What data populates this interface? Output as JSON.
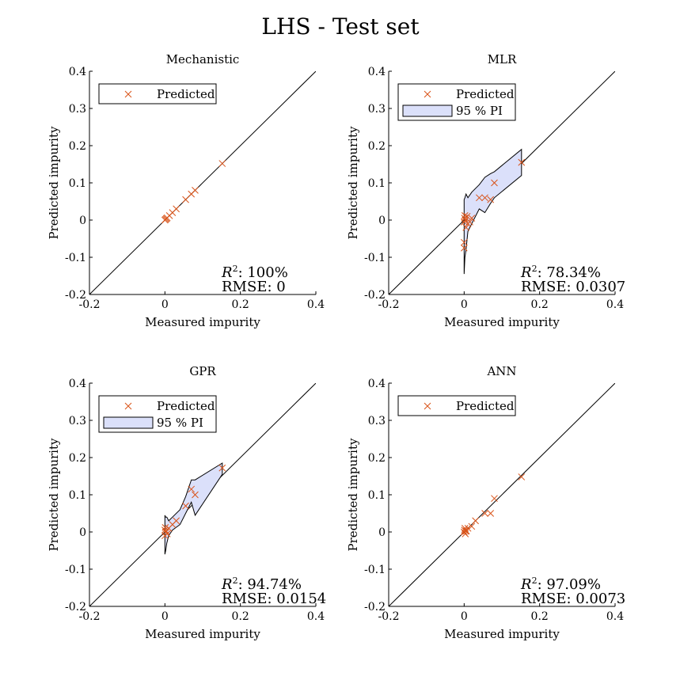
{
  "figure": {
    "title": "LHS - Test set"
  },
  "chart_data": [
    {
      "type": "scatter",
      "title": "Mechanistic",
      "xlabel": "Measured impurity",
      "ylabel": "Predicted impurity",
      "xlim": [
        -0.2,
        0.4
      ],
      "ylim": [
        -0.2,
        0.4
      ],
      "xticks": [
        "-0.2",
        "0",
        "0.2",
        "0.4"
      ],
      "yticks": [
        "-0.2",
        "-0.1",
        "0",
        "0.1",
        "0.2",
        "0.3",
        "0.4"
      ],
      "grid": false,
      "legend": {
        "placement": "top-left",
        "entries": [
          "Predicted"
        ]
      },
      "reference_line": "y = x",
      "series": [
        {
          "name": "Predicted",
          "marker": "x",
          "color": "#d95319",
          "x": [
            0,
            0.002,
            0.004,
            0.006,
            0.012,
            0.02,
            0.03,
            0.055,
            0.07,
            0.08,
            0.152
          ],
          "y": [
            0,
            0.002,
            0.004,
            0.006,
            0.012,
            0.02,
            0.03,
            0.055,
            0.07,
            0.08,
            0.152
          ]
        }
      ],
      "stats": {
        "r2_label": "R",
        "r2_sup": "2",
        "r2_value": ": 100%",
        "rmse": "RMSE: 0"
      }
    },
    {
      "type": "scatter",
      "title": "MLR",
      "xlabel": "Measured impurity",
      "ylabel": "Predicted impurity",
      "xlim": [
        -0.2,
        0.4
      ],
      "ylim": [
        -0.2,
        0.4
      ],
      "xticks": [
        "-0.2",
        "0",
        "0.2",
        "0.4"
      ],
      "yticks": [
        "-0.2",
        "-0.1",
        "0",
        "0.1",
        "0.2",
        "0.3",
        "0.4"
      ],
      "grid": false,
      "legend": {
        "placement": "top-left",
        "entries": [
          "Predicted",
          "95 % PI"
        ]
      },
      "reference_line": "y = x",
      "series": [
        {
          "name": "Predicted",
          "marker": "x",
          "color": "#d95319",
          "x": [
            0,
            0,
            0,
            0.001,
            0.002,
            0.003,
            0.005,
            0.008,
            0.01,
            0.015,
            0.02,
            0.04,
            0.055,
            0.07,
            0.08,
            0.152
          ],
          "y": [
            -0.075,
            -0.06,
            -0.005,
            0.005,
            0.012,
            0,
            -0.02,
            0.01,
            -0.01,
            -0.005,
            0.005,
            0.06,
            0.06,
            0.055,
            0.1,
            0.155
          ]
        }
      ],
      "pi_band": {
        "name": "95 % PI",
        "fill": "#dbe0fa",
        "x": [
          0,
          0.002,
          0.005,
          0.01,
          0.02,
          0.04,
          0.055,
          0.07,
          0.08,
          0.152
        ],
        "upper": [
          0.055,
          0.06,
          0.07,
          0.06,
          0.075,
          0.095,
          0.115,
          0.125,
          0.13,
          0.19
        ],
        "lower": [
          -0.145,
          -0.1,
          -0.08,
          -0.03,
          -0.01,
          0.03,
          0.02,
          0.045,
          0.06,
          0.12
        ]
      }
    },
    {
      "type": "scatter",
      "title": "GPR",
      "xlabel": "Measured impurity",
      "ylabel": "Predicted impurity",
      "xlim": [
        -0.2,
        0.4
      ],
      "ylim": [
        -0.2,
        0.4
      ],
      "xticks": [
        "-0.2",
        "0",
        "0.2",
        "0.4"
      ],
      "yticks": [
        "-0.2",
        "-0.1",
        "0",
        "0.1",
        "0.2",
        "0.3",
        "0.4"
      ],
      "grid": false,
      "legend": {
        "placement": "top-left",
        "entries": [
          "Predicted",
          "95 % PI"
        ]
      },
      "reference_line": "y = x",
      "series": [
        {
          "name": "Predicted",
          "marker": "x",
          "color": "#d95319",
          "x": [
            0,
            0,
            0.001,
            0.002,
            0.004,
            0.006,
            0.01,
            0.02,
            0.03,
            0.055,
            0.07,
            0.08,
            0.152
          ],
          "y": [
            -0.01,
            0.005,
            0.012,
            0,
            0.002,
            -0.005,
            0.01,
            0.02,
            0.03,
            0.07,
            0.115,
            0.1,
            0.172
          ]
        }
      ],
      "pi_band": {
        "name": "95 % PI",
        "fill": "#dbe0fa",
        "x": [
          0,
          0.002,
          0.005,
          0.01,
          0.02,
          0.04,
          0.055,
          0.07,
          0.08,
          0.152
        ],
        "upper": [
          0.045,
          0.04,
          0.04,
          0.03,
          0.04,
          0.06,
          0.095,
          0.14,
          0.14,
          0.185
        ],
        "lower": [
          -0.06,
          -0.05,
          -0.03,
          -0.01,
          0.005,
          0.02,
          0.05,
          0.08,
          0.045,
          0.155
        ]
      }
    },
    {
      "type": "scatter",
      "title": "ANN",
      "xlabel": "Measured impurity",
      "ylabel": "Predicted impurity",
      "xlim": [
        -0.2,
        0.4
      ],
      "ylim": [
        -0.2,
        0.4
      ],
      "xticks": [
        "-0.2",
        "0",
        "0.2",
        "0.4"
      ],
      "yticks": [
        "-0.2",
        "-0.1",
        "0",
        "0.1",
        "0.2",
        "0.3",
        "0.4"
      ],
      "grid": false,
      "legend": {
        "placement": "top-left",
        "entries": [
          "Predicted"
        ]
      },
      "reference_line": "y = x",
      "series": [
        {
          "name": "Predicted",
          "marker": "x",
          "color": "#d95319",
          "x": [
            0,
            0.001,
            0.002,
            0.003,
            0.004,
            0.006,
            0.01,
            0.02,
            0.03,
            0.055,
            0.07,
            0.08,
            0.152
          ],
          "y": [
            0,
            0.005,
            0.01,
            -0.005,
            0.002,
            0.003,
            0.01,
            0.015,
            0.03,
            0.05,
            0.05,
            0.09,
            0.148
          ]
        }
      ],
      "stats": {
        "r2_label": "R",
        "r2_sup": "2",
        "r2_value": ": 97.09%",
        "rmse": "RMSE: 0.0073"
      }
    }
  ],
  "stats_text": [
    {
      "r2_label": "R",
      "r2_sup": "2",
      "r2_value": ": 100%",
      "rmse": "RMSE: 0"
    },
    {
      "r2_label": "R",
      "r2_sup": "2",
      "r2_value": ": 78.34%",
      "rmse": "RMSE: 0.0307"
    },
    {
      "r2_label": "R",
      "r2_sup": "2",
      "r2_value": ": 94.74%",
      "rmse": "RMSE: 0.0154"
    },
    {
      "r2_label": "R",
      "r2_sup": "2",
      "r2_value": ": 97.09%",
      "rmse": "RMSE: 0.0073"
    }
  ]
}
